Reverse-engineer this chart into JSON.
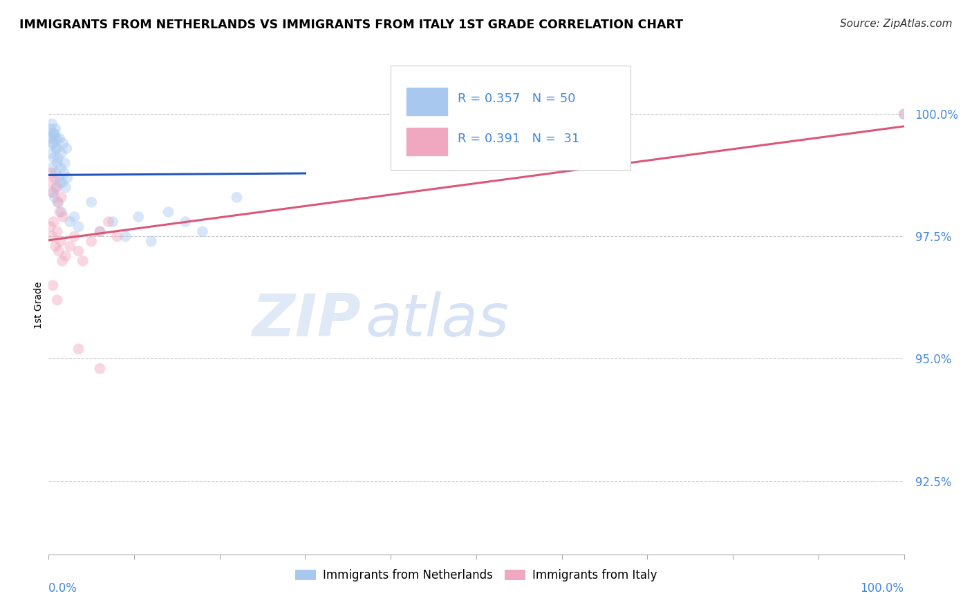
{
  "title": "IMMIGRANTS FROM NETHERLANDS VS IMMIGRANTS FROM ITALY 1ST GRADE CORRELATION CHART",
  "source": "Source: ZipAtlas.com",
  "ylabel": "1st Grade",
  "ylabel_ticks": [
    100.0,
    97.5,
    95.0,
    92.5
  ],
  "ylabel_tick_labels": [
    "100.0%",
    "97.5%",
    "95.0%",
    "92.5%"
  ],
  "xlim": [
    0.0,
    100.0
  ],
  "ylim": [
    91.0,
    101.2
  ],
  "R_blue": 0.357,
  "N_blue": 50,
  "R_pink": 0.391,
  "N_pink": 31,
  "blue_color": "#A8C8F0",
  "pink_color": "#F0A8C0",
  "blue_line_color": "#2255BB",
  "pink_line_color": "#DD5577",
  "legend_label_blue": "Immigrants from Netherlands",
  "legend_label_pink": "Immigrants from Italy",
  "blue_dots_x": [
    0.1,
    0.2,
    0.3,
    0.4,
    0.5,
    0.6,
    0.7,
    0.8,
    0.9,
    1.0,
    0.3,
    0.5,
    0.7,
    0.9,
    1.1,
    1.3,
    1.5,
    1.7,
    1.9,
    2.1,
    0.4,
    0.6,
    0.8,
    1.0,
    1.2,
    1.4,
    1.6,
    1.8,
    2.0,
    2.2,
    0.5,
    0.7,
    0.9,
    1.1,
    1.3,
    1.5,
    2.5,
    3.0,
    3.5,
    5.0,
    6.0,
    7.5,
    9.0,
    10.5,
    12.0,
    14.0,
    16.0,
    18.0,
    22.0,
    100.0
  ],
  "blue_dots_y": [
    99.6,
    99.7,
    99.5,
    99.8,
    99.4,
    99.6,
    99.5,
    99.7,
    99.3,
    99.5,
    99.2,
    99.4,
    99.6,
    99.3,
    99.1,
    99.5,
    99.2,
    99.4,
    99.0,
    99.3,
    98.9,
    99.1,
    98.8,
    99.0,
    98.7,
    98.9,
    98.6,
    98.8,
    98.5,
    98.7,
    98.4,
    98.3,
    98.5,
    98.2,
    98.6,
    98.0,
    97.8,
    97.9,
    97.7,
    98.2,
    97.6,
    97.8,
    97.5,
    97.9,
    97.4,
    98.0,
    97.8,
    97.6,
    98.3,
    100.0
  ],
  "pink_dots_x": [
    0.1,
    0.3,
    0.5,
    0.7,
    0.9,
    1.1,
    1.3,
    1.5,
    1.7,
    0.2,
    0.4,
    0.6,
    0.8,
    1.0,
    1.2,
    1.4,
    1.6,
    2.0,
    2.5,
    3.0,
    3.5,
    4.0,
    5.0,
    6.0,
    7.0,
    8.0,
    0.5,
    1.0,
    3.5,
    6.0,
    100.0
  ],
  "pink_dots_y": [
    98.6,
    98.8,
    98.4,
    98.7,
    98.5,
    98.2,
    98.0,
    98.3,
    97.9,
    97.7,
    97.5,
    97.8,
    97.3,
    97.6,
    97.2,
    97.4,
    97.0,
    97.1,
    97.3,
    97.5,
    97.2,
    97.0,
    97.4,
    97.6,
    97.8,
    97.5,
    96.5,
    96.2,
    95.2,
    94.8,
    100.0
  ],
  "watermark_zip": "ZIP",
  "watermark_atlas": "atlas",
  "dot_size": 130,
  "dot_alpha": 0.45
}
